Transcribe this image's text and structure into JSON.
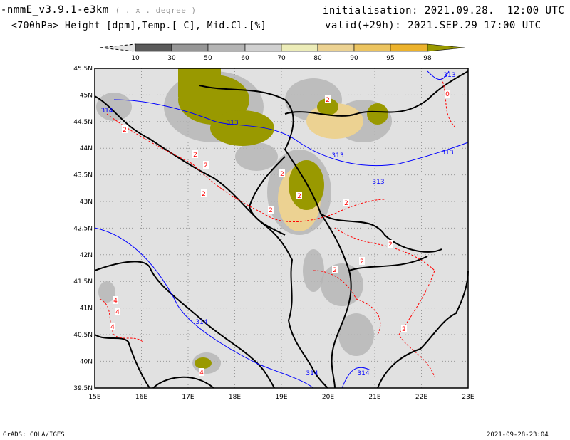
{
  "header": {
    "model": "f-nmmE_v3.9.1-e3km",
    "projection": "( . x . degree )",
    "fields": "<700hPa> Height [dpm],Temp.[ C], Mid.Cl.[%]",
    "init": "initialisation: 2021.09.28.  12:00 UTC",
    "valid": "valid(+29h): 2021.SEP.29 17:00 UTC"
  },
  "colorbar": {
    "labels": [
      "10",
      "30",
      "50",
      "60",
      "70",
      "80",
      "90",
      "95",
      "98"
    ],
    "colors": [
      "#5a5a5a",
      "#969696",
      "#b4b4b4",
      "#d0d0d0",
      "#ececb8",
      "#ecd292",
      "#ecc460",
      "#ecb22c",
      "#999900"
    ]
  },
  "map": {
    "lon_labels": [
      "15E",
      "16E",
      "17E",
      "18E",
      "19E",
      "20E",
      "21E",
      "22E",
      "23E"
    ],
    "lat_labels": [
      "45.5N",
      "45N",
      "44.5N",
      "44N",
      "43.5N",
      "43N",
      "42.5N",
      "42N",
      "41.5N",
      "41N",
      "40.5N",
      "40N",
      "39.5N"
    ],
    "height_labels": [
      "313",
      "313",
      "313",
      "313",
      "313",
      "314",
      "314",
      "314"
    ],
    "temp_labels": [
      "2",
      "2",
      "2",
      "2",
      "2",
      "2",
      "2",
      "2",
      "2",
      "2",
      "2",
      "2",
      "2",
      "4",
      "4",
      "4",
      "4",
      "0"
    ]
  },
  "footer": {
    "left": "GrADS: COLA/IGES",
    "right": "2021-09-28-23:04"
  }
}
